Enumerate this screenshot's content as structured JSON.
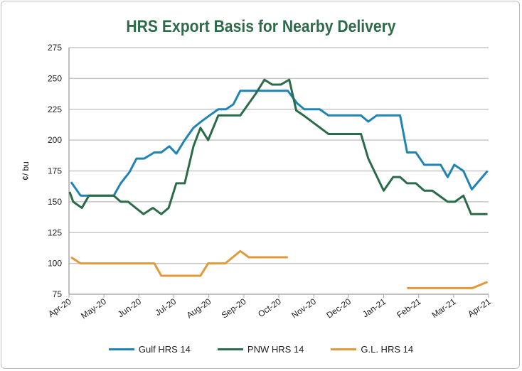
{
  "chart_data": {
    "type": "line",
    "title": "HRS Export Basis for Nearby Delivery",
    "xlabel": "",
    "ylabel": "¢/ bu",
    "ylim": [
      75,
      275
    ],
    "yticks": [
      75,
      100,
      125,
      150,
      175,
      200,
      225,
      250,
      275
    ],
    "xlim": [
      0,
      12
    ],
    "x_unit": "months since Apr-20",
    "xtick_labels": [
      "Apr-20",
      "May-20",
      "Jun-20",
      "Jul-20",
      "Aug-20",
      "Sep-20",
      "Oct-20",
      "Nov-20",
      "Dec-20",
      "Jan-21",
      "Feb-21",
      "Mar-21",
      "Apr-21"
    ],
    "grid": true,
    "legend_position": "bottom",
    "series": [
      {
        "name": "Gulf HRS 14",
        "color": "#1f84b5",
        "segments": [
          [
            [
              0.06,
              166
            ],
            [
              0.33,
              155
            ],
            [
              0.57,
              155
            ],
            [
              1.28,
              155
            ],
            [
              1.48,
              165
            ],
            [
              1.73,
              174
            ],
            [
              1.93,
              185
            ],
            [
              2.15,
              185
            ],
            [
              2.44,
              190
            ],
            [
              2.64,
              190
            ],
            [
              2.87,
              195
            ],
            [
              3.07,
              189
            ],
            [
              3.31,
              200
            ],
            [
              3.56,
              210
            ],
            [
              3.78,
              215
            ],
            [
              4.02,
              220
            ],
            [
              4.27,
              225
            ],
            [
              4.49,
              225
            ],
            [
              4.7,
              229
            ],
            [
              4.9,
              240
            ],
            [
              6.26,
              240
            ],
            [
              6.52,
              230
            ],
            [
              6.73,
              225
            ],
            [
              7.17,
              225
            ],
            [
              7.42,
              220
            ],
            [
              8.35,
              220
            ],
            [
              8.56,
              215
            ],
            [
              8.8,
              220
            ],
            [
              9.47,
              220
            ],
            [
              9.67,
              190
            ],
            [
              9.92,
              190
            ],
            [
              10.16,
              180
            ],
            [
              10.63,
              180
            ],
            [
              10.83,
              170
            ],
            [
              11.02,
              180
            ],
            [
              11.28,
              175
            ],
            [
              11.52,
              160
            ],
            [
              11.97,
              175
            ]
          ]
        ]
      },
      {
        "name": "PNW HRS 14",
        "color": "#2a6b48",
        "segments": [
          [
            [
              0.02,
              158
            ],
            [
              0.12,
              150
            ],
            [
              0.37,
              145
            ],
            [
              0.57,
              155
            ],
            [
              1.28,
              155
            ],
            [
              1.48,
              150
            ],
            [
              1.69,
              150
            ],
            [
              2.13,
              140
            ],
            [
              2.4,
              145
            ],
            [
              2.64,
              140
            ],
            [
              2.85,
              145
            ],
            [
              3.07,
              165
            ],
            [
              3.31,
              165
            ],
            [
              3.56,
              195
            ],
            [
              3.76,
              210
            ],
            [
              3.98,
              200
            ],
            [
              4.27,
              220
            ],
            [
              4.9,
              220
            ],
            [
              5.35,
              238
            ],
            [
              5.59,
              249
            ],
            [
              5.81,
              245
            ],
            [
              6.06,
              245
            ],
            [
              6.3,
              249
            ],
            [
              6.5,
              224
            ],
            [
              6.71,
              220
            ],
            [
              7.42,
              205
            ],
            [
              8.35,
              205
            ],
            [
              8.56,
              185
            ],
            [
              9.0,
              159
            ],
            [
              9.27,
              170
            ],
            [
              9.47,
              170
            ],
            [
              9.67,
              165
            ],
            [
              9.92,
              165
            ],
            [
              10.16,
              159
            ],
            [
              10.39,
              159
            ],
            [
              10.83,
              150
            ],
            [
              11.04,
              150
            ],
            [
              11.28,
              155
            ],
            [
              11.5,
              140
            ],
            [
              11.97,
              140
            ]
          ]
        ]
      },
      {
        "name": "G.L. HRS 14",
        "color": "#e09a3c",
        "segments": [
          [
            [
              0.06,
              105
            ],
            [
              0.33,
              100
            ],
            [
              2.44,
              100
            ],
            [
              2.64,
              90
            ],
            [
              3.76,
              90
            ],
            [
              3.98,
              100
            ],
            [
              4.47,
              100
            ],
            [
              4.9,
              110
            ],
            [
              5.14,
              105
            ],
            [
              6.26,
              105
            ]
          ],
          [
            [
              9.67,
              80
            ],
            [
              11.54,
              80
            ],
            [
              11.97,
              85
            ]
          ]
        ]
      }
    ]
  }
}
